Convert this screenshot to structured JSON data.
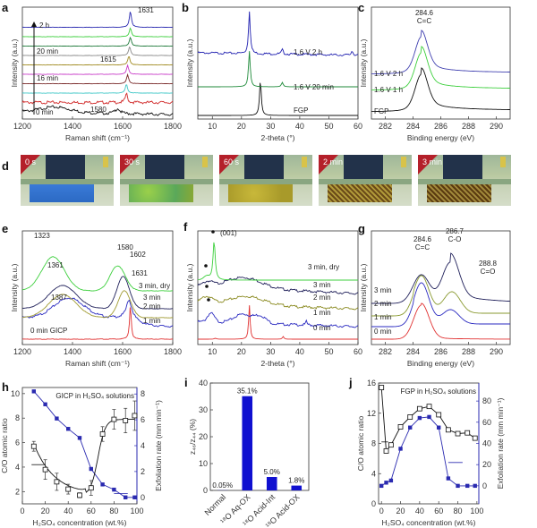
{
  "figure": {
    "panel_labels": [
      "a",
      "b",
      "c",
      "d",
      "e",
      "f",
      "g",
      "h",
      "i",
      "j"
    ]
  },
  "chart_data": [
    {
      "panel": "a",
      "type": "line",
      "title": "",
      "xlabel": "Raman shift (cm⁻¹)",
      "ylabel": "Intensity (a.u.)",
      "xlim": [
        1200,
        1800
      ],
      "xticks": [
        "1200",
        "1400",
        "1600",
        "1800"
      ],
      "series": [
        {
          "name": "0 min",
          "color": "#111111",
          "peak": 1580
        },
        {
          "name": "",
          "color": "#d12a2a",
          "peak": 1615
        },
        {
          "name": "",
          "color": "#3fc7c7",
          "peak": 1615
        },
        {
          "name": "",
          "color": "#7a2a2a",
          "peak": 1620
        },
        {
          "name": "16 min",
          "color": "#c83cc8",
          "peak": 1620
        },
        {
          "name": "",
          "color": "#a08a20",
          "peak": 1625
        },
        {
          "name": "",
          "color": "#888888",
          "peak": 1628
        },
        {
          "name": "20 min",
          "color": "#1f7a3a",
          "peak": 1631
        },
        {
          "name": "",
          "color": "#3ccf3c",
          "peak": 1631
        },
        {
          "name": "2 h",
          "color": "#2a2ab0",
          "peak": 1631
        }
      ],
      "annotations": [
        "1631",
        "1615",
        "1580",
        "2 h",
        "20 min",
        "16 min",
        "0 min"
      ]
    },
    {
      "panel": "b",
      "type": "line",
      "xlabel": "2-theta (°)",
      "ylabel": "Intensity (a.u.)",
      "xlim": [
        5,
        60
      ],
      "xticks": [
        "10",
        "20",
        "30",
        "40",
        "50",
        "60"
      ],
      "series": [
        {
          "name": "FGP",
          "color": "#111111",
          "peaks": [
            26.5
          ]
        },
        {
          "name": "1.6 V 20 min",
          "color": "#1f8a3a",
          "peaks": [
            22.7,
            34.0
          ]
        },
        {
          "name": "1.6 V 2 h",
          "color": "#2020b0",
          "peaks": [
            22.7,
            34.0,
            58
          ]
        }
      ]
    },
    {
      "panel": "c",
      "type": "line",
      "xlabel": "Binding energy (eV)",
      "ylabel": "Intensity (a.u.)",
      "xlim": [
        281,
        291
      ],
      "xticks": [
        "282",
        "284",
        "286",
        "288",
        "290"
      ],
      "series": [
        {
          "name": "FGP",
          "color": "#111111"
        },
        {
          "name": "1.6 V 1 h",
          "color": "#3ccf3c"
        },
        {
          "name": "1.6 V 2 h",
          "color": "#4040b0"
        }
      ],
      "annotations": [
        "284.6",
        "C=C"
      ]
    },
    {
      "panel": "d",
      "type": "photo-sequence",
      "frames": [
        "0 s",
        "30 s",
        "60 s",
        "2 min",
        "3 min"
      ]
    },
    {
      "panel": "e",
      "type": "line",
      "xlabel": "Raman shift (cm⁻¹)",
      "ylabel": "Intensity (a.u.)",
      "xlim": [
        1200,
        1800
      ],
      "xticks": [
        "1200",
        "1400",
        "1600",
        "1800"
      ],
      "series": [
        {
          "name": "0 min GICP",
          "color": "#e03030"
        },
        {
          "name": "1 min",
          "color": "#2a2ac0"
        },
        {
          "name": "2 min",
          "color": "#a09a30"
        },
        {
          "name": "3 min",
          "color": "#20205a"
        },
        {
          "name": "3 min, dry",
          "color": "#3ccf3c"
        }
      ],
      "annotations": [
        "1323",
        "1361",
        "1387",
        "1580",
        "1602",
        "1631"
      ]
    },
    {
      "panel": "f",
      "type": "line",
      "xlabel": "2-theta (°)",
      "ylabel": "Intensity (a.u.)",
      "xlim": [
        5,
        60
      ],
      "xticks": [
        "10",
        "20",
        "30",
        "40",
        "50",
        "60"
      ],
      "series": [
        {
          "name": "0 min",
          "color": "#e03030"
        },
        {
          "name": "1 min",
          "color": "#2a2ac0"
        },
        {
          "name": "2 min",
          "color": "#8a8a20"
        },
        {
          "name": "3 min",
          "color": "#20205a"
        },
        {
          "name": "3 min, dry",
          "color": "#3ccf3c"
        }
      ],
      "annotations": [
        "(001)"
      ]
    },
    {
      "panel": "g",
      "type": "line",
      "xlabel": "Binding energy (eV)",
      "ylabel": "Intensity (a.u.)",
      "xlim": [
        281,
        291
      ],
      "xticks": [
        "282",
        "284",
        "286",
        "288",
        "290"
      ],
      "series": [
        {
          "name": "0 min",
          "color": "#e03030"
        },
        {
          "name": "1 min",
          "color": "#2a2ac0"
        },
        {
          "name": "2 min",
          "color": "#8a9a30"
        },
        {
          "name": "3 min",
          "color": "#20205a"
        }
      ],
      "annotations": [
        "284.6",
        "C=C",
        "286.7",
        "C-O",
        "288.8",
        "C=O"
      ]
    },
    {
      "panel": "h",
      "type": "scatter",
      "title": "GICP in H2SO4 solutions",
      "xlabel": "H2SO4 concentration (wt.%)",
      "ylabel": "C/O atomic ratio",
      "y2label": "Exfoliation rate (mm min⁻¹)",
      "xlim": [
        0,
        100
      ],
      "ylim": [
        1,
        10.5
      ],
      "y2lim": [
        -0.5,
        8.5
      ],
      "xticks": [
        "0",
        "20",
        "40",
        "60",
        "80",
        "100"
      ],
      "yticks": [
        "2",
        "4",
        "6",
        "8",
        "10"
      ],
      "y2ticks": [
        "0",
        "2",
        "4",
        "6",
        "8"
      ],
      "x": [
        10,
        20,
        30,
        40,
        50,
        60,
        70,
        80,
        90,
        98
      ],
      "series": [
        {
          "name": "C/O atomic ratio",
          "axis": "left",
          "color": "#111111",
          "values": [
            5.7,
            3.8,
            2.8,
            2.2,
            1.7,
            2.3,
            6.7,
            7.9,
            7.8,
            8.2
          ],
          "errors": [
            0.4,
            0.8,
            0.7,
            0.4,
            0.2,
            0.6,
            0.6,
            0.8,
            1.0,
            1.2
          ]
        },
        {
          "name": "Exfoliation rate",
          "axis": "right",
          "color": "#2a2ab0",
          "values": [
            8.2,
            7.2,
            6.1,
            5.3,
            4.6,
            2.2,
            1.0,
            0.6,
            0.0,
            0.0
          ]
        }
      ]
    },
    {
      "panel": "i",
      "type": "bar",
      "ylabel": "z46/z44 (%)",
      "ylim": [
        0,
        40
      ],
      "yticks": [
        "0",
        "10",
        "20",
        "30",
        "40"
      ],
      "categories": [
        "Normal",
        "18O Aq-OX",
        "18O Acid-Int",
        "18O Acid-OX"
      ],
      "values": [
        0.05,
        35.1,
        5.0,
        1.8
      ],
      "labels": [
        "0.05%",
        "35.1%",
        "5.0%",
        "1.8%"
      ],
      "color": "#1010d0"
    },
    {
      "panel": "j",
      "type": "scatter",
      "title": "FGP in H2SO4 solutions",
      "xlabel": "H2SO4 concentration (wt.%)",
      "ylabel": "C/O atomic ratio",
      "y2label": "Exfoliation rate (mm min⁻¹)",
      "xlim": [
        -3,
        102
      ],
      "ylim": [
        0,
        16
      ],
      "y2lim": [
        -17,
        97
      ],
      "xticks": [
        "0",
        "20",
        "40",
        "60",
        "80",
        "100"
      ],
      "yticks": [
        "0",
        "4",
        "8",
        "12",
        "16"
      ],
      "y2ticks": [
        "0",
        "20",
        "40",
        "60",
        "80"
      ],
      "x": [
        0,
        5,
        10,
        20,
        30,
        40,
        50,
        60,
        70,
        80,
        90,
        98
      ],
      "series": [
        {
          "name": "C/O atomic ratio",
          "axis": "left",
          "color": "#111111",
          "values": [
            15.4,
            7.0,
            7.8,
            10.2,
            11.5,
            12.6,
            12.9,
            11.8,
            9.8,
            9.3,
            9.4,
            8.7
          ]
        },
        {
          "name": "Exfoliation rate",
          "axis": "right",
          "color": "#2a2ab0",
          "values": [
            0,
            3,
            5,
            35,
            55,
            64,
            65,
            55,
            7,
            0,
            0,
            0
          ]
        }
      ]
    }
  ]
}
